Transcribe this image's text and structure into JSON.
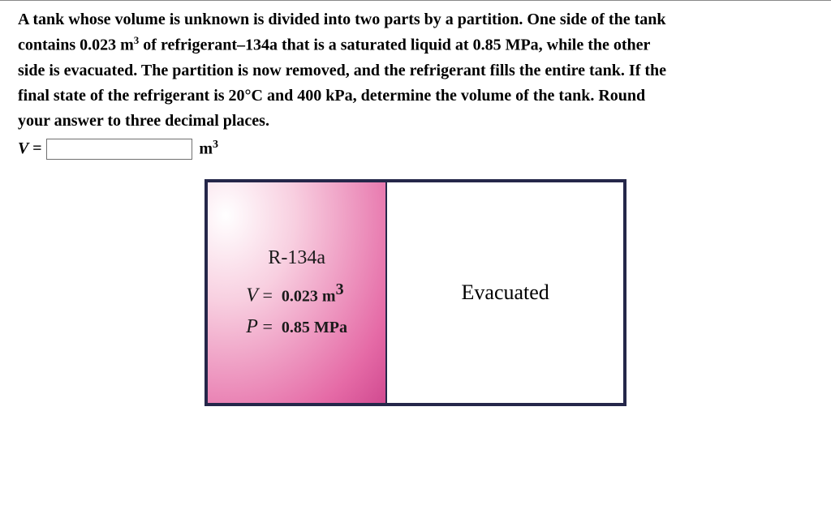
{
  "problem": {
    "line1_a": "A tank whose volume is unknown is divided into two parts by a partition. One side of the tank",
    "line2_a": "contains 0.023 m",
    "line2_sup": "3",
    "line2_b": " of refrigerant–134a that is a saturated liquid at 0.85 MPa, while the other",
    "line3": "side is evacuated. The partition is now removed, and the refrigerant fills the entire tank. If the",
    "line4": "final state of the refrigerant is 20°C and 400 kPa, determine the volume of the tank. Round",
    "line5": "your answer to three decimal places."
  },
  "answer": {
    "lhs": "V =",
    "value": "",
    "unit_base": "m",
    "unit_sup": "3"
  },
  "figure": {
    "left": {
      "title": "R-134a",
      "eq1_var": "V",
      "eq1_eq": " = ",
      "eq1_val": "0.023 m",
      "eq1_sup": "3",
      "eq2_var": "P",
      "eq2_eq": " = ",
      "eq2_val": "0.85 MPa"
    },
    "right": {
      "label": "Evacuated"
    },
    "colors": {
      "border": "#25274a",
      "left_gradient_inner": "#ffffff",
      "left_gradient_outer": "#c23481",
      "right_bg": "#ffffff"
    }
  }
}
